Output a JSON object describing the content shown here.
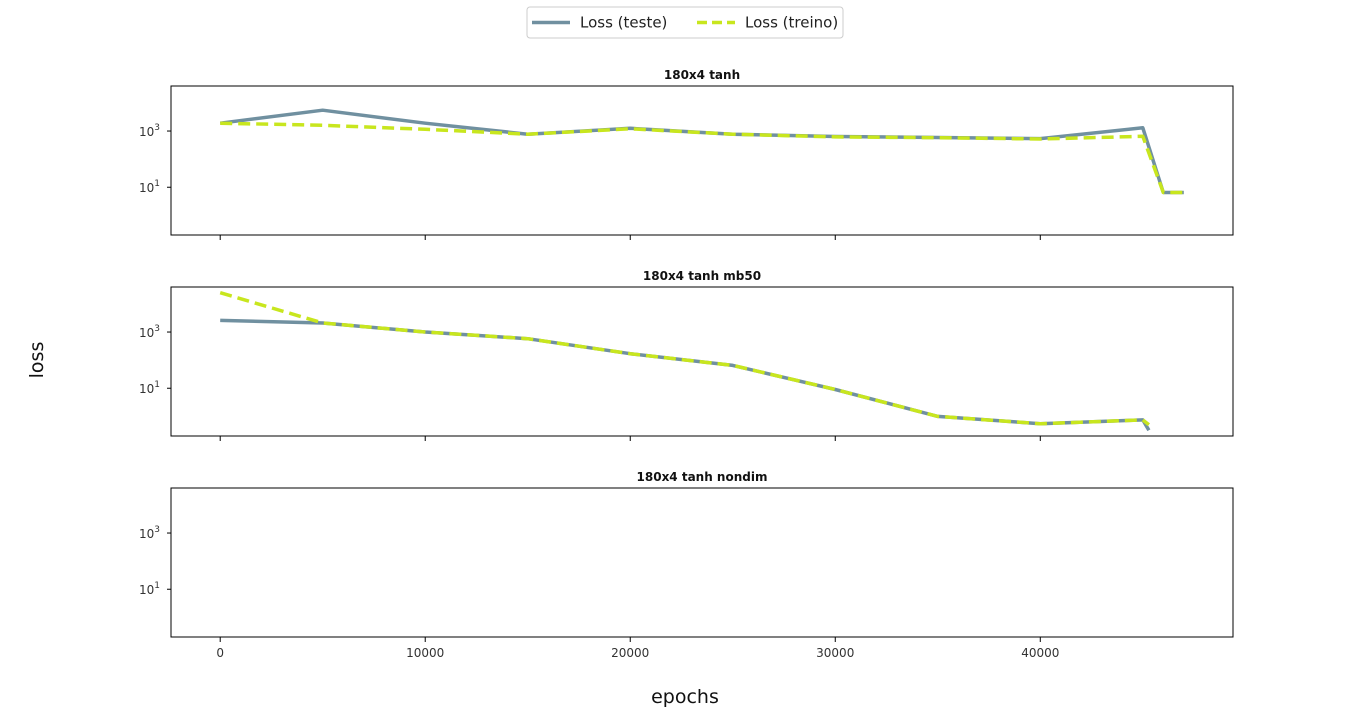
{
  "figure": {
    "xlabel": "epochs",
    "ylabel": "loss",
    "legend": {
      "placement": "top-center",
      "entries": [
        {
          "label": "Loss (teste)",
          "color": "#7090a0",
          "dash": "solid"
        },
        {
          "label": "Loss (treino)",
          "color": "#c8e61e",
          "dash": "dashed"
        }
      ]
    }
  },
  "chart_data": [
    {
      "type": "line",
      "title": "180x4 tanh",
      "y_scale": "log",
      "ylim": [
        0.2,
        40000
      ],
      "xlim": [
        -2400,
        49400
      ],
      "x_ticks": [
        0,
        10000,
        20000,
        30000,
        40000
      ],
      "y_ticks": [
        10,
        1000
      ],
      "series": [
        {
          "name": "Loss (teste)",
          "color": "#7090a0",
          "x": [
            0,
            5000,
            10000,
            15000,
            20000,
            25000,
            30000,
            35000,
            40000,
            45000,
            46000,
            47000
          ],
          "y": [
            1900,
            5500,
            1900,
            770,
            1250,
            770,
            640,
            590,
            540,
            1300,
            6.5,
            6.5
          ]
        },
        {
          "name": "Loss (treino)",
          "color": "#c8e61e",
          "x": [
            0,
            5000,
            10000,
            15000,
            20000,
            25000,
            30000,
            35000,
            40000,
            45000,
            46000,
            47000
          ],
          "y": [
            1900,
            1600,
            1150,
            770,
            1200,
            770,
            620,
            580,
            520,
            650,
            6.5,
            6.5
          ]
        }
      ]
    },
    {
      "type": "line",
      "title": "180x4 tanh mb50",
      "y_scale": "log",
      "ylim": [
        0.2,
        40000
      ],
      "xlim": [
        -2400,
        49400
      ],
      "x_ticks": [
        0,
        10000,
        20000,
        30000,
        40000
      ],
      "y_ticks": [
        10,
        1000
      ],
      "series": [
        {
          "name": "Loss (teste)",
          "color": "#7090a0",
          "x": [
            0,
            5000,
            10000,
            15000,
            20000,
            25000,
            30000,
            35000,
            40000,
            45000,
            45300
          ],
          "y": [
            2600,
            2100,
            1000,
            580,
            170,
            65,
            9,
            1.0,
            0.55,
            0.75,
            0.32
          ]
        },
        {
          "name": "Loss (treino)",
          "color": "#c8e61e",
          "x": [
            0,
            5000,
            10000,
            15000,
            20000,
            25000,
            30000,
            35000,
            40000,
            45000,
            45300
          ],
          "y": [
            25000,
            2100,
            1000,
            580,
            170,
            65,
            9,
            1.0,
            0.55,
            0.75,
            0.5
          ]
        }
      ]
    },
    {
      "type": "line",
      "title": "180x4 tanh nondim",
      "y_scale": "log",
      "ylim": [
        0.2,
        40000
      ],
      "xlim": [
        -2400,
        49400
      ],
      "x_ticks": [
        0,
        10000,
        20000,
        30000,
        40000
      ],
      "x_tick_labels": [
        "0",
        "10000",
        "20000",
        "30000",
        "40000"
      ],
      "y_ticks": [
        10,
        1000
      ],
      "series": []
    }
  ]
}
